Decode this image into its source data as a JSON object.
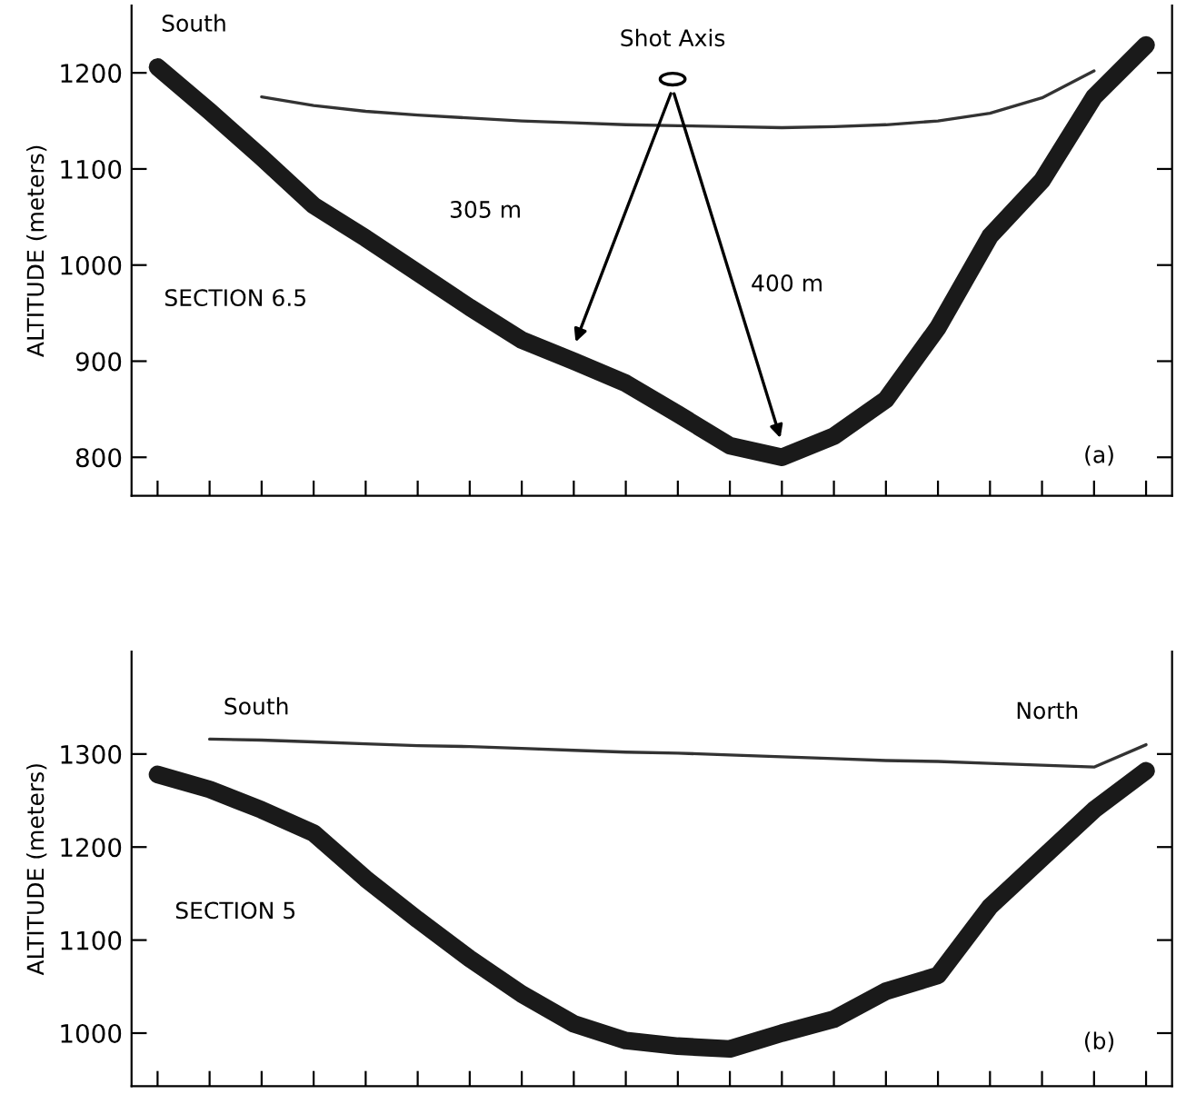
{
  "chart_data": [
    {
      "type": "line",
      "ylabel": "ALTITUDE (meters)",
      "categories": [
        null,
        null,
        null,
        null,
        null,
        null,
        null,
        null,
        null,
        null,
        null,
        null,
        null,
        null,
        null,
        null,
        null,
        null,
        null,
        null
      ],
      "series": [
        {
          "color": "#1a1a1a",
          "values": [
            1206,
            1160,
            1112,
            1062,
            1028,
            992,
            956,
            922,
            900,
            877,
            845,
            812,
            800,
            822,
            860,
            935,
            1030,
            1088,
            1175,
            1229
          ]
        },
        {
          "color": "#333333",
          "values": [
            null,
            null,
            1175,
            1166,
            1160,
            1156,
            1153,
            1150,
            1148,
            1146,
            1145,
            1144,
            1143,
            1144,
            1146,
            1150,
            1158,
            1174,
            1202,
            null
          ]
        }
      ],
      "ylim": [
        760,
        1270
      ],
      "yticks": [
        800,
        900,
        1000,
        1100,
        1200
      ],
      "grid": false,
      "legend": false,
      "marker": "none",
      "line_style": "solid",
      "tick_labels": "y",
      "annotations": [
        "South",
        "Shot Axis",
        "305 m",
        "400 m",
        "SECTION 6.5",
        "(a)"
      ]
    },
    {
      "type": "line",
      "ylabel": "ALTITUDE (meters)",
      "categories": [
        null,
        null,
        null,
        null,
        null,
        null,
        null,
        null,
        null,
        null,
        null,
        null,
        null,
        null,
        null,
        null,
        null,
        null,
        null,
        null
      ],
      "series": [
        {
          "color": "#1a1a1a",
          "values": [
            1278,
            1262,
            1240,
            1215,
            1166,
            1122,
            1080,
            1042,
            1010,
            992,
            986,
            983,
            1000,
            1015,
            1045,
            1062,
            1136,
            1188,
            1240,
            1282
          ]
        },
        {
          "color": "#333333",
          "values": [
            null,
            1316,
            1315,
            1313,
            1311,
            1309,
            1308,
            1306,
            1304,
            1302,
            1301,
            1299,
            1297,
            1295,
            1293,
            1292,
            1290,
            1288,
            1286,
            1310
          ]
        }
      ],
      "ylim": [
        943,
        1410
      ],
      "yticks": [
        1000,
        1100,
        1200,
        1300
      ],
      "grid": false,
      "legend": false,
      "marker": "none",
      "line_style": "solid",
      "tick_labels": "y",
      "annotations": [
        "South",
        "North",
        "SECTION 5",
        "(b)"
      ]
    }
  ]
}
